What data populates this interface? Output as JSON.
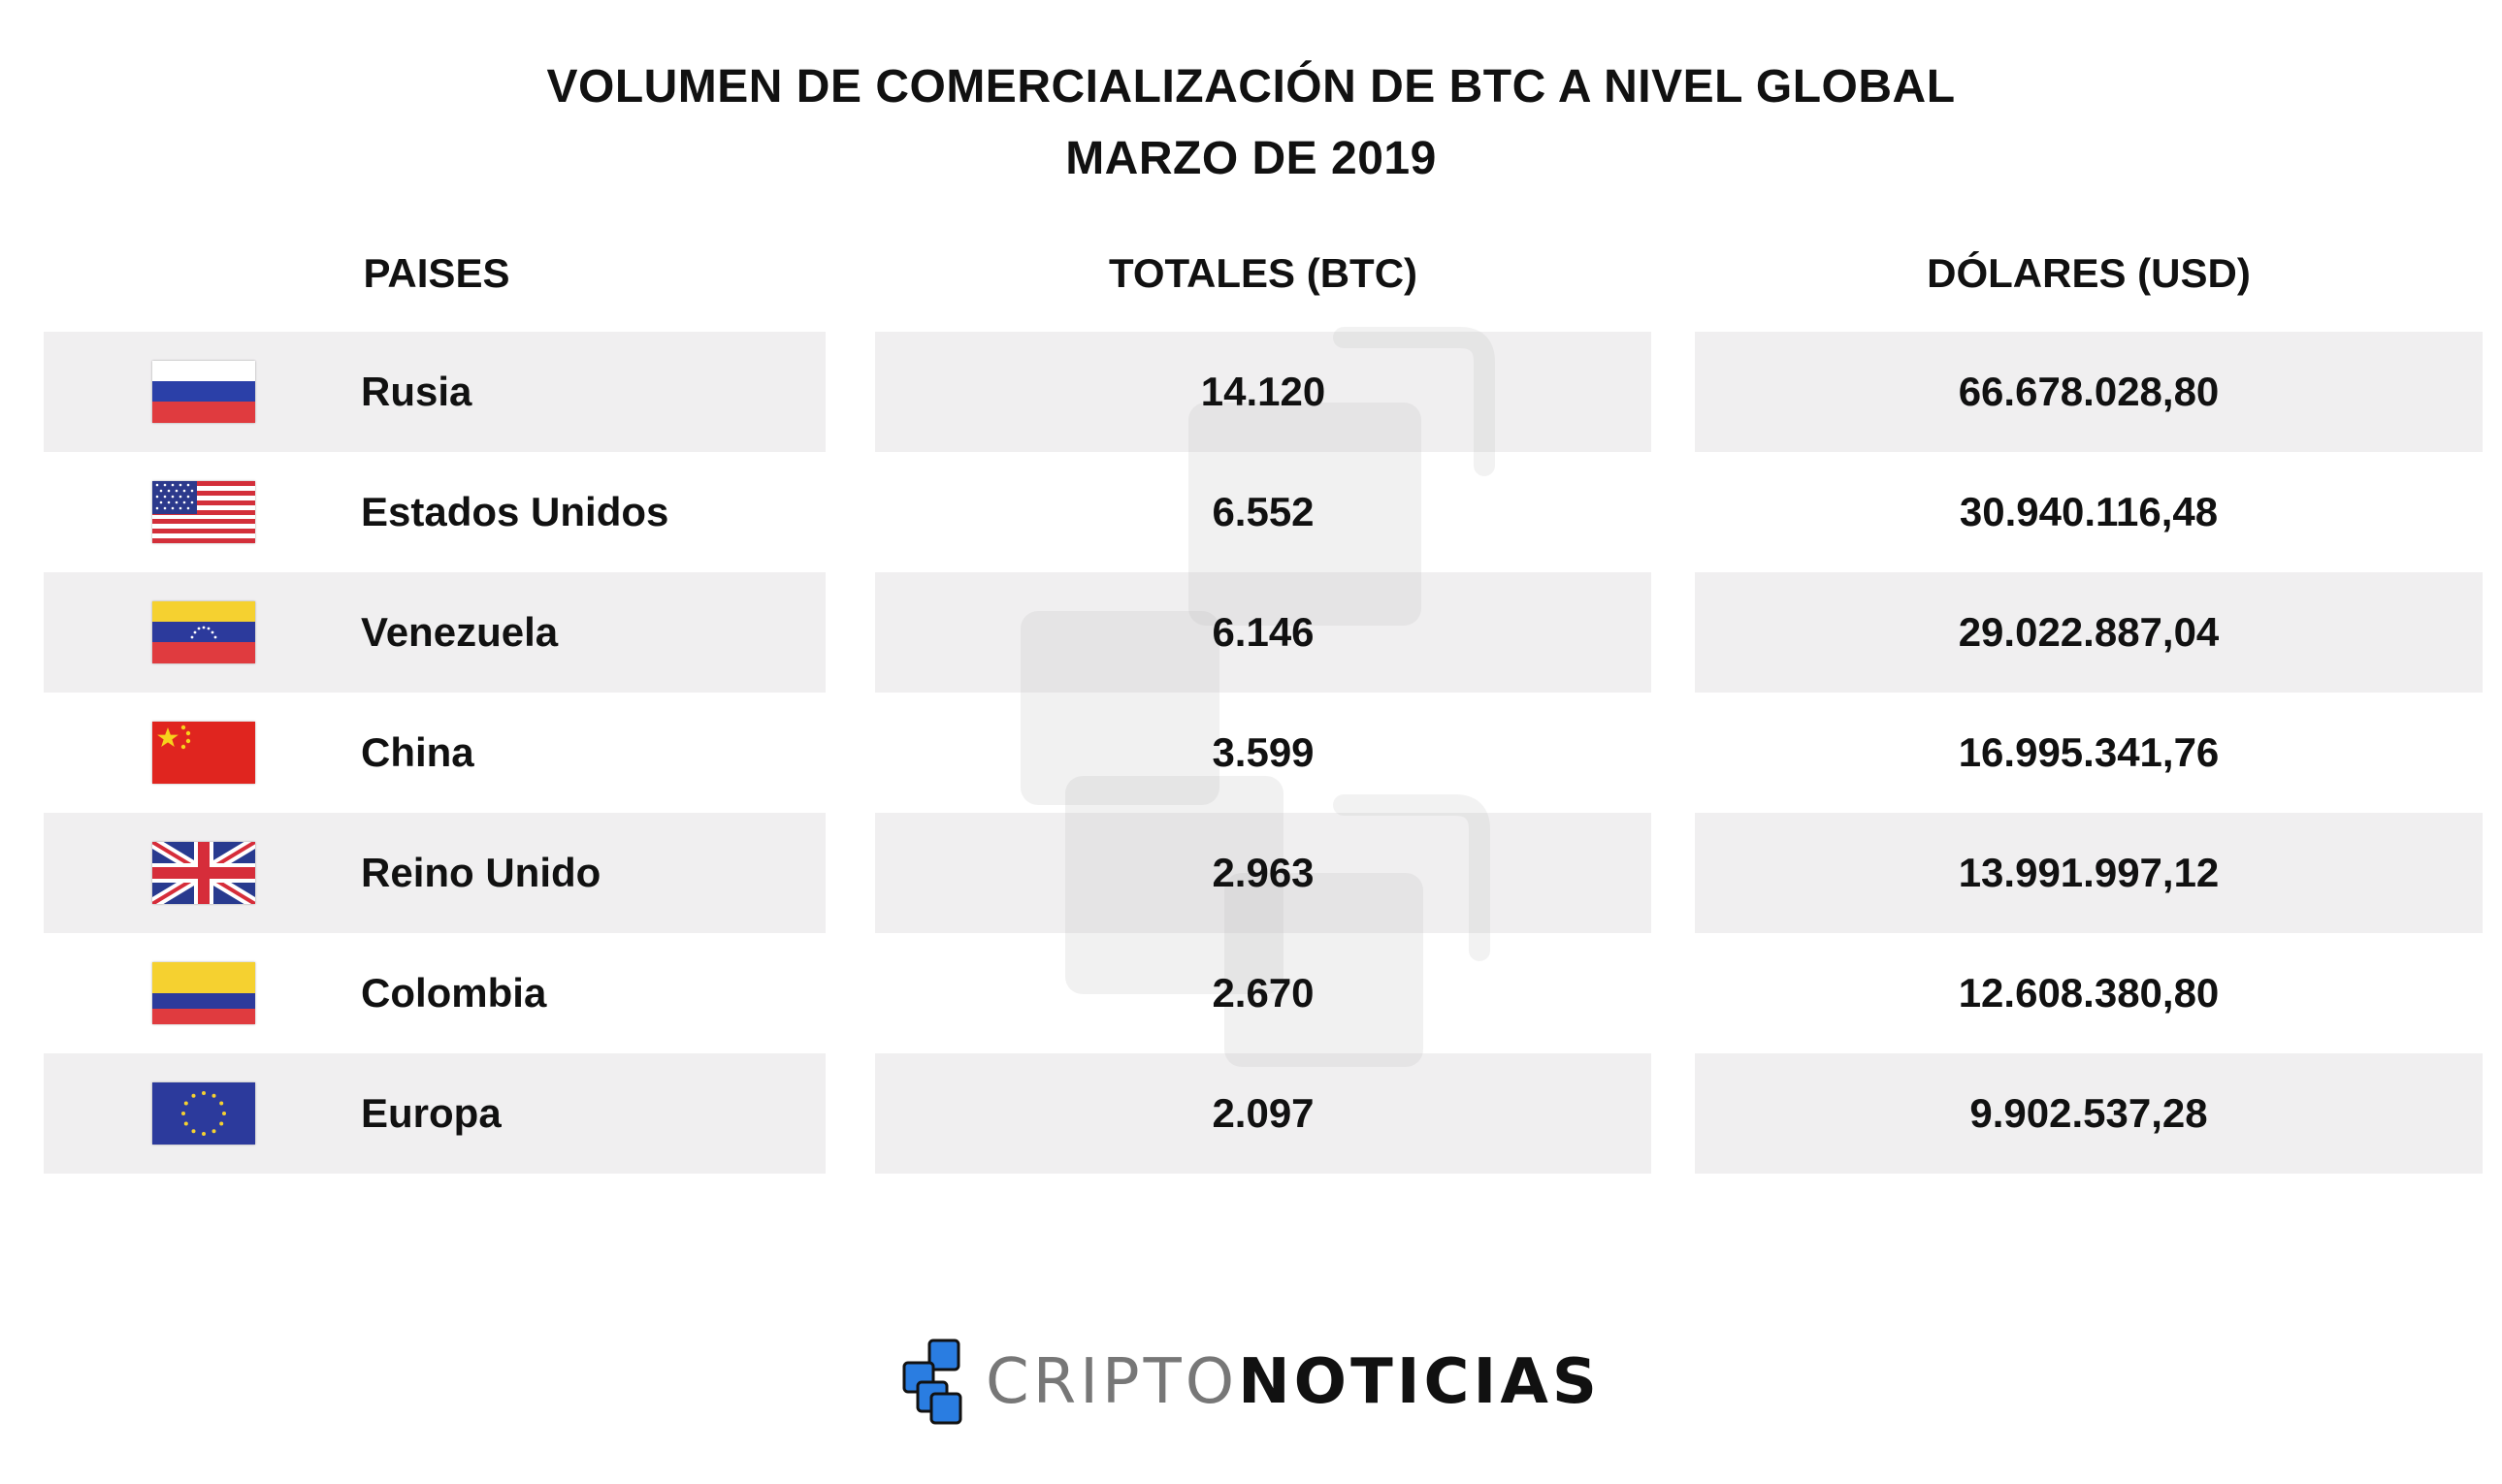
{
  "title": {
    "line1": "VOLUMEN DE COMERCIALIZACIÓN DE BTC A NIVEL GLOBAL",
    "line2": "MARZO DE 2019"
  },
  "headers": {
    "country": "PAISES",
    "btc": "TOTALES (BTC)",
    "usd": "DÓLARES (USD)"
  },
  "rows": [
    {
      "flag": "russia-flag-icon",
      "country": "Rusia",
      "btc": "14.120",
      "usd": "66.678.028,80"
    },
    {
      "flag": "usa-flag-icon",
      "country": "Estados Unidos",
      "btc": "6.552",
      "usd": "30.940.116,48"
    },
    {
      "flag": "venezuela-flag-icon",
      "country": "Venezuela",
      "btc": "6.146",
      "usd": "29.022.887,04"
    },
    {
      "flag": "china-flag-icon",
      "country": "China",
      "btc": "3.599",
      "usd": "16.995.341,76"
    },
    {
      "flag": "uk-flag-icon",
      "country": "Reino Unido",
      "btc": "2.963",
      "usd": "13.991.997,12"
    },
    {
      "flag": "colombia-flag-icon",
      "country": "Colombia",
      "btc": "2.670",
      "usd": "12.608.380,80"
    },
    {
      "flag": "eu-flag-icon",
      "country": "Europa",
      "btc": "2.097",
      "usd": "9.902.537,28"
    }
  ],
  "logo": {
    "part1": "CRIPTO",
    "part2": "NOTICIAS",
    "icon": "criptonoticias-logo-icon",
    "brand_color": "#2a7de1"
  },
  "colors": {
    "row_shade": "#f0eff0",
    "text": "#111111",
    "logo_gray": "#777777"
  }
}
